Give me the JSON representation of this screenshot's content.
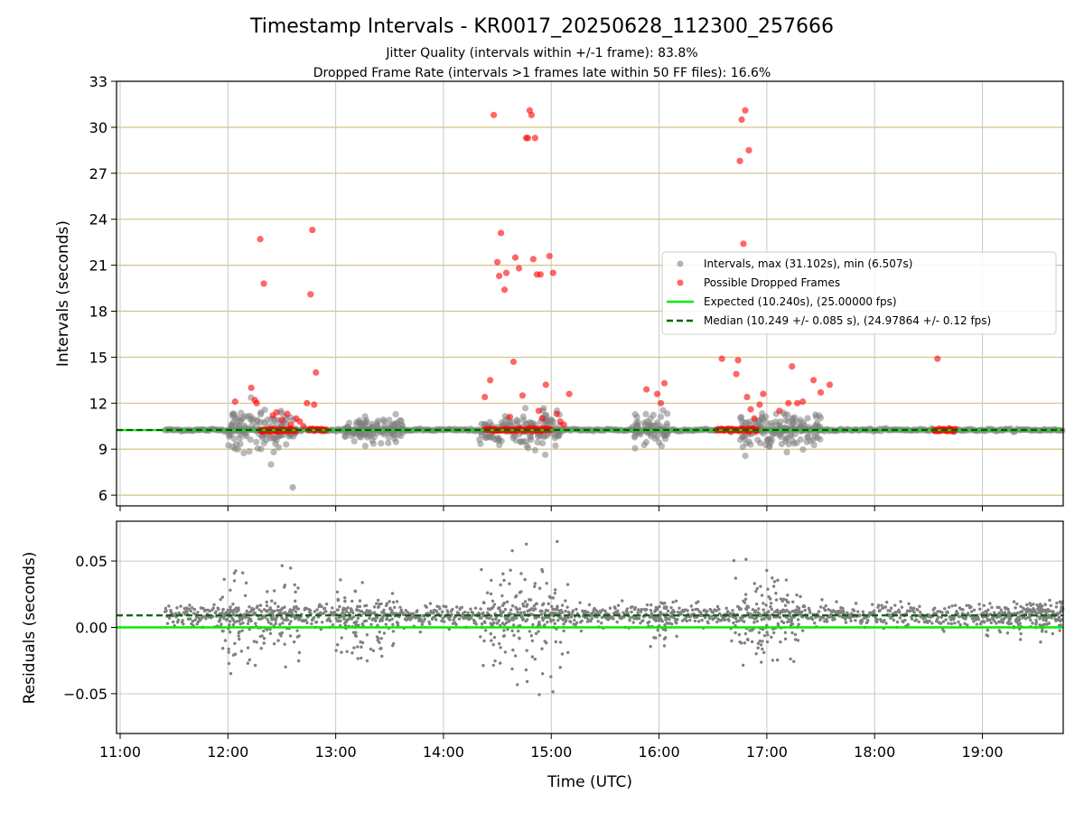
{
  "chart_data": [
    {
      "type": "scatter",
      "title": "Timestamp Intervals - KR0017_20250628_112300_257666",
      "subtitle_1": "Jitter Quality (intervals within +/-1 frame): 83.8%",
      "subtitle_2": "Dropped Frame Rate (intervals >1 frames late within 50 FF files): 16.6%",
      "ylabel": "Intervals (seconds)",
      "xlim": [
        "11:00",
        "19:45"
      ],
      "ylim": [
        5.3,
        33
      ],
      "yticks": [
        "6",
        "9",
        "12",
        "15",
        "18",
        "21",
        "24",
        "27",
        "30",
        "33"
      ],
      "horizontal_grid_color": "#d4c384",
      "legend": {
        "placement": "center-right",
        "entries": [
          "Intervals, max (31.102s), min (6.507s)",
          "Possible Dropped Frames",
          "Expected (10.240s), (25.00000 fps)",
          "Median (10.249 +/- 0.085 s), (24.97864 +/- 0.12 fps)"
        ]
      },
      "series": [
        {
          "name": "Intervals, max (31.102s), min (6.507s)",
          "color": "#808080",
          "clusters": [
            {
              "start": "11:25",
              "end": "19:45",
              "center": 10.25,
              "spread": 0.08
            },
            {
              "start": "12:00",
              "end": "12:38",
              "center": 10.2,
              "spread": 1.2,
              "min": 6.507
            },
            {
              "start": "13:05",
              "end": "13:38",
              "center": 10.2,
              "spread": 0.8
            },
            {
              "start": "14:20",
              "end": "15:05",
              "center": 10.2,
              "spread": 1.0
            },
            {
              "start": "15:45",
              "end": "16:05",
              "center": 10.2,
              "spread": 1.0
            },
            {
              "start": "16:45",
              "end": "17:30",
              "center": 10.2,
              "spread": 1.2
            }
          ]
        },
        {
          "name": "Possible Dropped Frames",
          "color": "#ff0000",
          "points": [
            [
              "12:04",
              12.1
            ],
            [
              "12:13",
              13.0
            ],
            [
              "12:15",
              12.2
            ],
            [
              "12:16",
              12.0
            ],
            [
              "12:18",
              22.7
            ],
            [
              "12:20",
              19.8
            ],
            [
              "12:25",
              11.2
            ],
            [
              "12:27",
              11.4
            ],
            [
              "12:30",
              10.9
            ],
            [
              "12:33",
              11.3
            ],
            [
              "12:35",
              10.6
            ],
            [
              "12:38",
              11.0
            ],
            [
              "12:40",
              10.8
            ],
            [
              "12:42",
              10.5
            ],
            [
              "12:44",
              12.0
            ],
            [
              "12:46",
              19.1
            ],
            [
              "12:47",
              23.3
            ],
            [
              "12:48",
              11.9
            ],
            [
              "12:49",
              14.0
            ],
            [
              "14:23",
              12.4
            ],
            [
              "14:26",
              13.5
            ],
            [
              "14:28",
              30.8
            ],
            [
              "14:30",
              21.2
            ],
            [
              "14:31",
              20.3
            ],
            [
              "14:32",
              23.1
            ],
            [
              "14:34",
              19.4
            ],
            [
              "14:35",
              20.5
            ],
            [
              "14:37",
              11.1
            ],
            [
              "14:39",
              14.7
            ],
            [
              "14:40",
              21.5
            ],
            [
              "14:42",
              20.8
            ],
            [
              "14:44",
              12.5
            ],
            [
              "14:46",
              29.3
            ],
            [
              "14:47",
              29.3
            ],
            [
              "14:48",
              31.1
            ],
            [
              "14:49",
              30.8
            ],
            [
              "14:50",
              21.4
            ],
            [
              "14:51",
              29.3
            ],
            [
              "14:52",
              20.4
            ],
            [
              "14:53",
              11.5
            ],
            [
              "14:54",
              20.4
            ],
            [
              "14:55",
              11.0
            ],
            [
              "14:57",
              13.2
            ],
            [
              "14:59",
              21.6
            ],
            [
              "15:01",
              20.5
            ],
            [
              "15:03",
              11.3
            ],
            [
              "15:05",
              10.8
            ],
            [
              "15:07",
              10.6
            ],
            [
              "15:10",
              12.6
            ],
            [
              "15:53",
              12.9
            ],
            [
              "15:59",
              12.6
            ],
            [
              "16:01",
              12.0
            ],
            [
              "16:03",
              13.3
            ],
            [
              "16:35",
              14.9
            ],
            [
              "16:43",
              13.9
            ],
            [
              "16:44",
              14.8
            ],
            [
              "16:45",
              27.8
            ],
            [
              "16:46",
              30.5
            ],
            [
              "16:47",
              22.4
            ],
            [
              "16:48",
              31.1
            ],
            [
              "16:49",
              12.4
            ],
            [
              "16:50",
              28.5
            ],
            [
              "16:51",
              11.6
            ],
            [
              "16:53",
              11.0
            ],
            [
              "16:56",
              11.9
            ],
            [
              "16:58",
              12.6
            ],
            [
              "17:07",
              11.5
            ],
            [
              "17:12",
              12.0
            ],
            [
              "17:14",
              14.4
            ],
            [
              "17:17",
              12.0
            ],
            [
              "17:20",
              12.1
            ],
            [
              "17:26",
              13.5
            ],
            [
              "17:30",
              12.7
            ],
            [
              "17:35",
              13.2
            ],
            [
              "18:35",
              14.9
            ]
          ],
          "baseline_bands": [
            {
              "start": "12:18",
              "end": "12:38",
              "value": 10.25
            },
            {
              "start": "12:45",
              "end": "12:55",
              "value": 10.25
            },
            {
              "start": "14:23",
              "end": "15:00",
              "value": 10.25
            },
            {
              "start": "16:32",
              "end": "16:55",
              "value": 10.25
            },
            {
              "start": "18:33",
              "end": "18:45",
              "value": 10.25
            }
          ]
        },
        {
          "name": "Expected (10.240s), (25.00000 fps)",
          "color": "#00ee00",
          "style": "solid",
          "value": 10.24
        },
        {
          "name": "Median (10.249 +/- 0.085 s), (24.97864 +/- 0.12 fps)",
          "color": "#006400",
          "style": "dashed",
          "value": 10.249
        }
      ]
    },
    {
      "type": "scatter",
      "ylabel": "Residuals (seconds)",
      "xlabel": "Time (UTC)",
      "xlim": [
        "11:00",
        "19:45"
      ],
      "ylim": [
        -0.08,
        0.08
      ],
      "xticks": [
        "11:00",
        "12:00",
        "13:00",
        "14:00",
        "15:00",
        "16:00",
        "17:00",
        "18:00",
        "19:00"
      ],
      "yticks": [
        "0.05",
        "0.00",
        "−0.05"
      ],
      "grid": true,
      "series": [
        {
          "color": "#808080",
          "clusters": [
            {
              "start": "11:25",
              "end": "19:45",
              "center": 0.009,
              "spread": 0.004
            },
            {
              "start": "11:55",
              "end": "12:40",
              "center": 0.005,
              "spread": 0.03
            },
            {
              "start": "13:00",
              "end": "13:35",
              "center": 0.005,
              "spread": 0.025
            },
            {
              "start": "14:20",
              "end": "15:10",
              "center": 0.005,
              "spread": 0.035
            },
            {
              "start": "15:55",
              "end": "16:10",
              "center": 0.005,
              "spread": 0.015
            },
            {
              "start": "16:40",
              "end": "17:20",
              "center": 0.005,
              "spread": 0.03
            },
            {
              "start": "19:00",
              "end": "19:45",
              "center": 0.008,
              "spread": 0.012
            }
          ]
        },
        {
          "color": "#00ee00",
          "style": "solid",
          "value": 0.0
        },
        {
          "color": "#006400",
          "style": "dashed",
          "value": 0.009
        }
      ]
    }
  ]
}
